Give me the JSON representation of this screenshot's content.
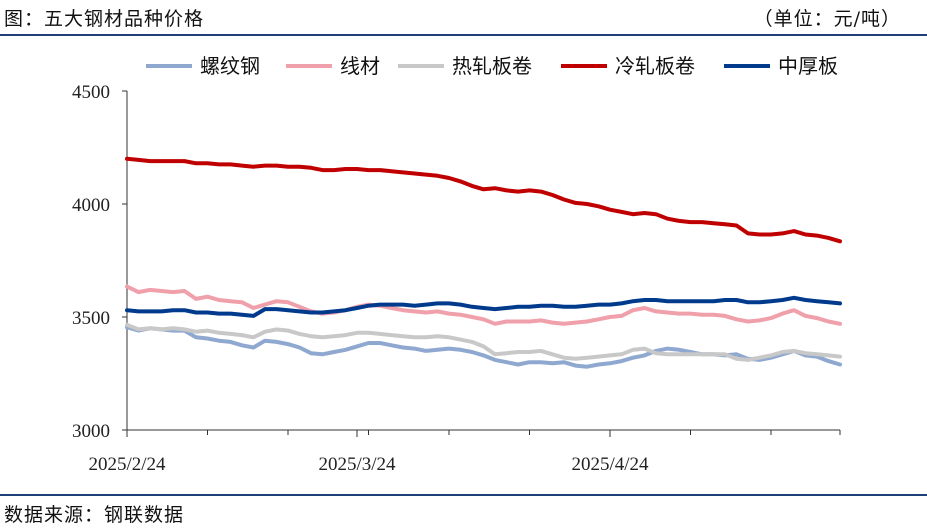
{
  "header": {
    "title": "图：五大钢材品种价格",
    "unit": "（单位：元/吨）"
  },
  "footer": {
    "source": "数据来源：钢联数据"
  },
  "chart_data": {
    "type": "line",
    "title": "五大钢材品种价格",
    "xlabel": "",
    "ylabel": "",
    "ylim": [
      3000,
      4500
    ],
    "yticks": [
      3000,
      3500,
      4000,
      4500
    ],
    "xticks": [
      {
        "label": "2025/2/24",
        "index": 0
      },
      {
        "label": "2025/3/24",
        "index": 20
      },
      {
        "label": "2025/4/24",
        "index": 42
      }
    ],
    "legend": "top",
    "grid": false,
    "x_count": 63,
    "series": [
      {
        "name": "螺纹钢",
        "color": "#8fa8d0",
        "values": [
          3455,
          3440,
          3450,
          3445,
          3440,
          3440,
          3410,
          3405,
          3395,
          3390,
          3375,
          3365,
          3395,
          3390,
          3380,
          3365,
          3340,
          3335,
          3345,
          3355,
          3370,
          3385,
          3385,
          3375,
          3365,
          3360,
          3350,
          3355,
          3360,
          3355,
          3345,
          3330,
          3310,
          3300,
          3290,
          3300,
          3300,
          3295,
          3300,
          3285,
          3280,
          3290,
          3295,
          3305,
          3320,
          3330,
          3350,
          3360,
          3355,
          3345,
          3335,
          3335,
          3330,
          3335,
          3315,
          3310,
          3320,
          3335,
          3350,
          3330,
          3325,
          3305,
          3290
        ]
      },
      {
        "name": "线材",
        "color": "#f0a0aa",
        "values": [
          3635,
          3610,
          3620,
          3615,
          3610,
          3615,
          3580,
          3590,
          3575,
          3570,
          3565,
          3540,
          3555,
          3570,
          3565,
          3545,
          3525,
          3515,
          3520,
          3530,
          3545,
          3555,
          3550,
          3540,
          3530,
          3525,
          3520,
          3525,
          3515,
          3510,
          3500,
          3490,
          3470,
          3480,
          3480,
          3480,
          3485,
          3475,
          3470,
          3475,
          3480,
          3490,
          3500,
          3505,
          3530,
          3540,
          3525,
          3520,
          3515,
          3515,
          3510,
          3510,
          3505,
          3490,
          3480,
          3485,
          3495,
          3515,
          3530,
          3505,
          3495,
          3480,
          3470
        ]
      },
      {
        "name": "热轧板卷",
        "color": "#c8c8c8",
        "values": [
          3465,
          3445,
          3450,
          3445,
          3450,
          3445,
          3435,
          3440,
          3430,
          3425,
          3420,
          3410,
          3435,
          3445,
          3440,
          3425,
          3415,
          3410,
          3415,
          3420,
          3430,
          3430,
          3425,
          3420,
          3415,
          3410,
          3410,
          3415,
          3410,
          3400,
          3390,
          3370,
          3335,
          3340,
          3345,
          3345,
          3350,
          3335,
          3320,
          3315,
          3320,
          3325,
          3330,
          3335,
          3355,
          3360,
          3340,
          3335,
          3335,
          3335,
          3335,
          3335,
          3335,
          3315,
          3310,
          3320,
          3330,
          3345,
          3350,
          3340,
          3335,
          3330,
          3325
        ]
      },
      {
        "name": "冷轧板卷",
        "color": "#c00000",
        "values": [
          4200,
          4195,
          4190,
          4190,
          4190,
          4190,
          4180,
          4180,
          4175,
          4175,
          4170,
          4165,
          4170,
          4170,
          4165,
          4165,
          4160,
          4150,
          4150,
          4155,
          4155,
          4150,
          4150,
          4145,
          4140,
          4135,
          4130,
          4125,
          4115,
          4100,
          4080,
          4065,
          4070,
          4060,
          4055,
          4060,
          4055,
          4040,
          4020,
          4005,
          4000,
          3990,
          3975,
          3965,
          3955,
          3960,
          3955,
          3935,
          3925,
          3920,
          3920,
          3915,
          3910,
          3905,
          3870,
          3865,
          3865,
          3870,
          3880,
          3865,
          3860,
          3850,
          3835
        ]
      },
      {
        "name": "中厚板",
        "color": "#003a8c",
        "values": [
          3530,
          3525,
          3525,
          3525,
          3530,
          3530,
          3520,
          3520,
          3515,
          3515,
          3510,
          3505,
          3535,
          3535,
          3530,
          3525,
          3520,
          3520,
          3525,
          3530,
          3540,
          3550,
          3555,
          3555,
          3555,
          3550,
          3555,
          3560,
          3560,
          3555,
          3545,
          3540,
          3535,
          3540,
          3545,
          3545,
          3550,
          3550,
          3545,
          3545,
          3550,
          3555,
          3555,
          3560,
          3570,
          3575,
          3575,
          3570,
          3570,
          3570,
          3570,
          3570,
          3575,
          3575,
          3565,
          3565,
          3570,
          3575,
          3585,
          3575,
          3570,
          3565,
          3560
        ]
      }
    ]
  }
}
